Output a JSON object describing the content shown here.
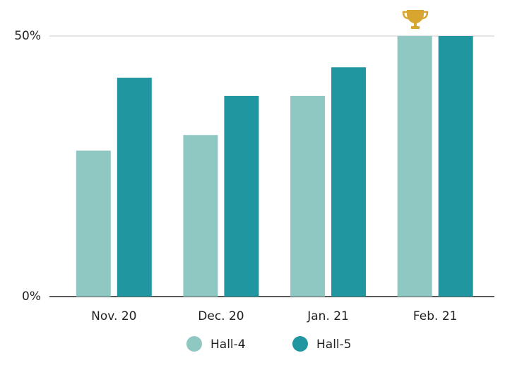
{
  "chart_data": {
    "type": "bar",
    "categories": [
      "Nov. 20",
      "Dec. 20",
      "Jan. 21",
      "Feb. 21"
    ],
    "series": [
      {
        "name": "Hall-4",
        "color": "#8fc7c2",
        "values": [
          28,
          31,
          38.5,
          50
        ]
      },
      {
        "name": "Hall-5",
        "color": "#2096a0",
        "values": [
          42,
          38.5,
          44,
          50
        ]
      }
    ],
    "ylim": [
      0,
      50
    ],
    "yticks": [
      {
        "value": 0,
        "label": "0%"
      },
      {
        "value": 50,
        "label": "50%"
      }
    ],
    "grid": true,
    "legend": "bottom"
  }
}
